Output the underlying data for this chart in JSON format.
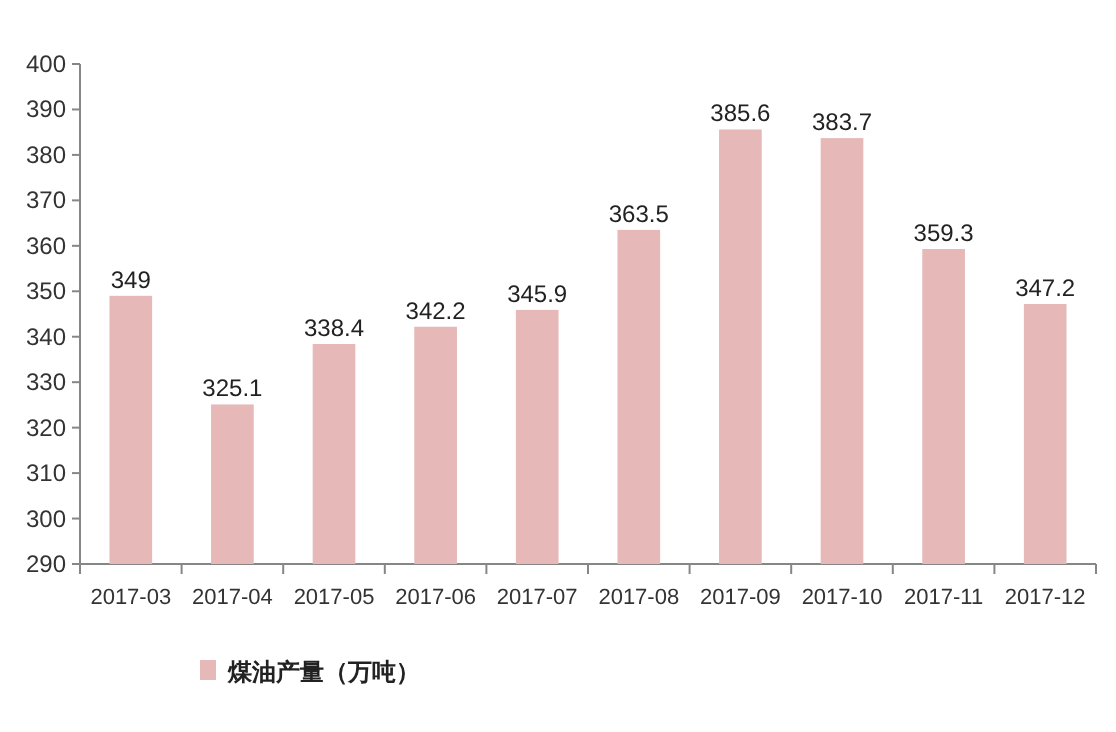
{
  "chart_data": {
    "type": "bar",
    "categories": [
      "2017-03",
      "2017-04",
      "2017-05",
      "2017-06",
      "2017-07",
      "2017-08",
      "2017-09",
      "2017-10",
      "2017-11",
      "2017-12"
    ],
    "series": [
      {
        "name": "煤油产量（万吨）",
        "color": "#e6b9b8",
        "values": [
          349,
          325.1,
          338.4,
          342.2,
          345.9,
          363.5,
          385.6,
          383.7,
          359.3,
          347.2
        ]
      }
    ],
    "ylim": [
      290,
      400
    ],
    "yticks": [
      290,
      300,
      310,
      320,
      330,
      340,
      350,
      360,
      370,
      380,
      390,
      400
    ],
    "data_labels": true,
    "legend": "bottom left",
    "grid": false
  }
}
